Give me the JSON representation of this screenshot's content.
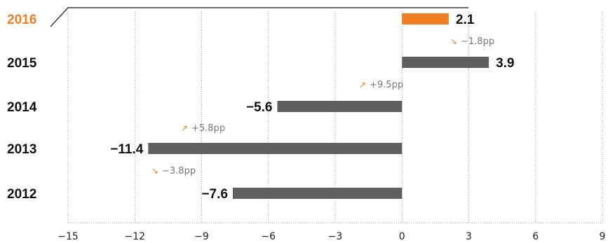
{
  "chart_data": {
    "type": "bar",
    "orientation": "horizontal",
    "categories": [
      "2016",
      "2015",
      "2014",
      "2013",
      "2012"
    ],
    "values": [
      2.1,
      3.9,
      -5.6,
      -11.4,
      -7.6
    ],
    "value_labels": [
      "2.1",
      "3.9",
      "−5.6",
      "−11.4",
      "−7.6"
    ],
    "highlight_category": "2016",
    "changes": [
      {
        "between": [
          "2016",
          "2015"
        ],
        "direction": "down",
        "label": "−1.8pp"
      },
      {
        "between": [
          "2015",
          "2014"
        ],
        "direction": "up",
        "label": "+9.5pp"
      },
      {
        "between": [
          "2014",
          "2013"
        ],
        "direction": "up",
        "label": "+5.8pp"
      },
      {
        "between": [
          "2013",
          "2012"
        ],
        "direction": "down",
        "label": "−3.8pp"
      }
    ],
    "xlim": [
      -15,
      9
    ],
    "xticks": [
      -15,
      -12,
      -9,
      -6,
      -3,
      0,
      3,
      6,
      9
    ],
    "xtick_labels": [
      "−15",
      "−12",
      "−9",
      "−6",
      "−3",
      "0",
      "3",
      "6",
      "9"
    ],
    "grid": "vertical dotted",
    "title": "",
    "xlabel": "",
    "ylabel": "",
    "colors": {
      "bar": "#5f5f5f",
      "highlight": "#f07f22",
      "grid": "#9a9a9a",
      "category_text": "#111111",
      "change_text": "#777777"
    }
  }
}
